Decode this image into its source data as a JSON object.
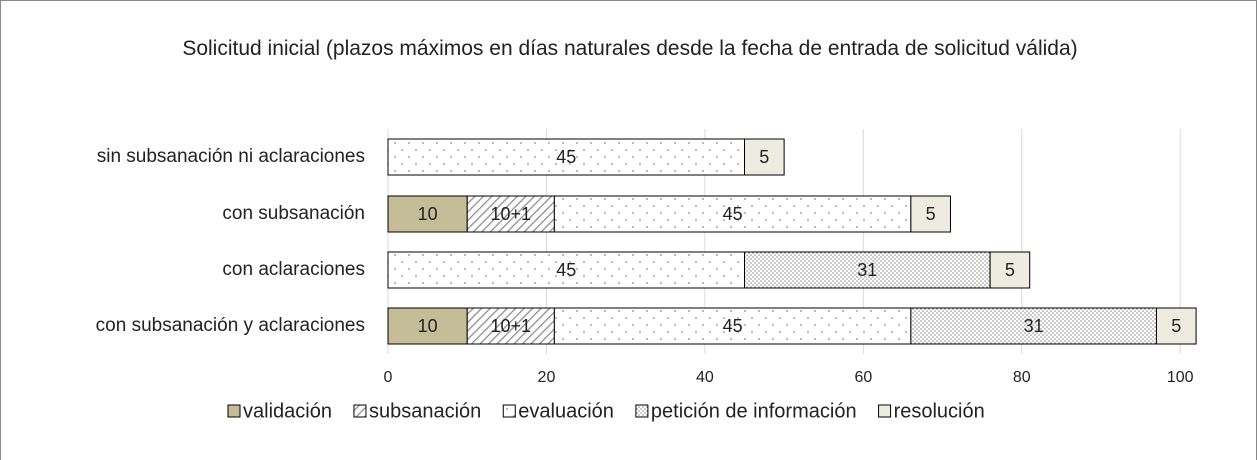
{
  "chart_data": {
    "type": "stacked-barh",
    "title": "Solicitud inicial (plazos máximos en días naturales desde la fecha de entrada de solicitud válida)",
    "categories": [
      "sin subsanación ni aclaraciones",
      "con subsanación",
      "con aclaraciones",
      "con subsanación y aclaraciones"
    ],
    "series": [
      {
        "name": "validación",
        "color": "#c4bd97",
        "values": [
          null,
          10,
          null,
          10
        ]
      },
      {
        "name": "subsanación",
        "color": "#8c8c8c",
        "values": [
          null,
          11,
          null,
          11
        ],
        "value_labels": [
          null,
          "10+1",
          null,
          "10+1"
        ]
      },
      {
        "name": "evaluación",
        "color": "#8c8c8c",
        "values": [
          45,
          45,
          45,
          45
        ]
      },
      {
        "name": "petición de información",
        "color": "#8c8c8c",
        "values": [
          null,
          null,
          31,
          31
        ]
      },
      {
        "name": "resolución",
        "color": "#eeece1",
        "values": [
          5,
          5,
          5,
          5
        ]
      }
    ],
    "xlim": [
      0,
      103
    ],
    "xticks": [
      0,
      20,
      40,
      60,
      80,
      100
    ],
    "grid": true,
    "legend": "bottom"
  }
}
